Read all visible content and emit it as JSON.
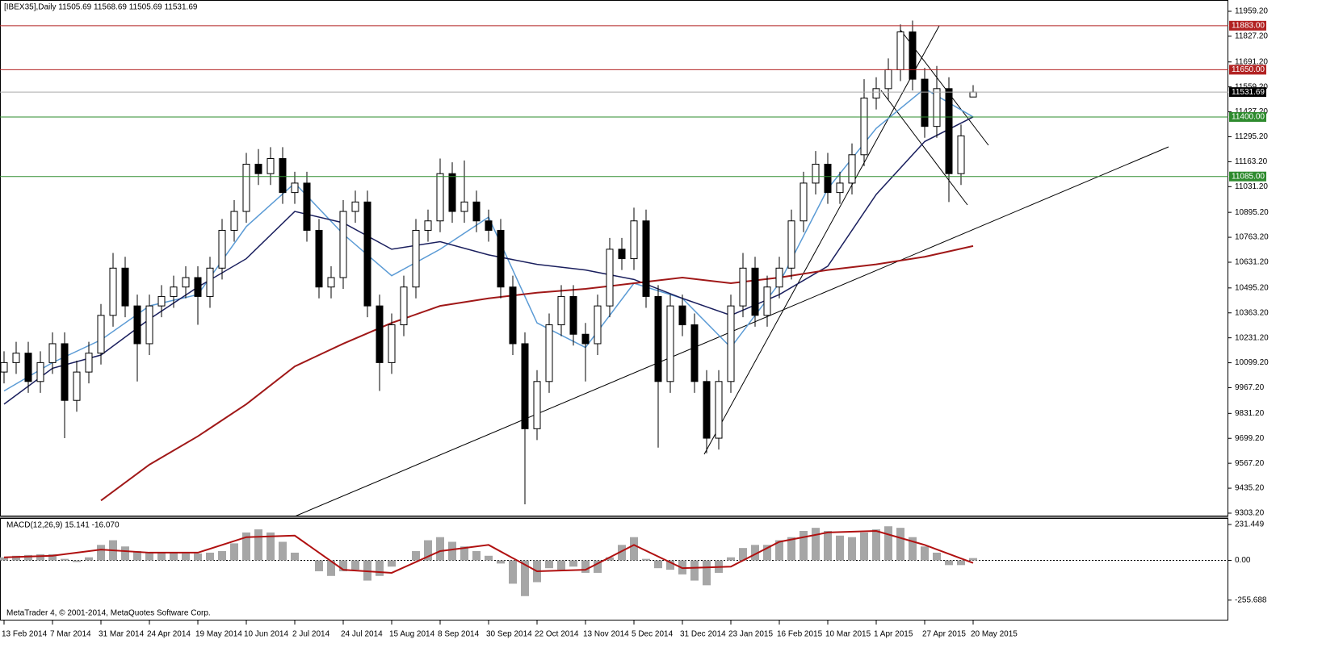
{
  "header": "[IBEX35],Daily  11505.69 11568.69 11505.69 11531.69",
  "footer": "MetaTrader 4, © 2001-2014, MetaQuotes Software Corp.",
  "chart_data": [
    {
      "type": "candlestick",
      "categories": [
        "13 Feb 2014",
        null,
        null,
        null,
        "7 Mar 2014",
        null,
        null,
        null,
        "31 Mar 2014",
        null,
        null,
        null,
        "24 Apr 2014",
        null,
        null,
        null,
        "19 May 2014",
        null,
        null,
        null,
        "10 Jun 2014",
        null,
        null,
        null,
        "2 Jul 2014",
        null,
        null,
        null,
        "24 Jul 2014",
        null,
        null,
        null,
        "15 Aug 2014",
        null,
        null,
        null,
        "8 Sep 2014",
        null,
        null,
        null,
        "30 Sep 2014",
        null,
        null,
        null,
        "22 Oct 2014",
        null,
        null,
        null,
        "13 Nov 2014",
        null,
        null,
        null,
        "5 Dec 2014",
        null,
        null,
        null,
        "31 Dec 2014",
        null,
        null,
        null,
        "23 Jan 2015",
        null,
        null,
        null,
        "16 Feb 2015",
        null,
        null,
        null,
        "10 Mar 2015",
        null,
        null,
        null,
        "1 Apr 2015",
        null,
        null,
        null,
        "27 Apr 2015",
        null,
        null,
        null,
        "20 May 2015"
      ],
      "open": [
        10050,
        10100,
        10150,
        10000,
        10100,
        10200,
        9900,
        10050,
        10150,
        10350,
        10600,
        10400,
        10200,
        10400,
        10450,
        10500,
        10550,
        10450,
        10600,
        10800,
        10900,
        11150,
        11100,
        11180,
        11000,
        11050,
        10800,
        10500,
        10550,
        10900,
        10950,
        10400,
        10100,
        10300,
        10500,
        10800,
        10850,
        11100,
        10900,
        10950,
        10850,
        10800,
        10500,
        10200,
        9750,
        10000,
        10300,
        10450,
        10250,
        10200,
        10400,
        10700,
        10650,
        10850,
        10450,
        10000,
        10400,
        10300,
        10000,
        9700,
        10000,
        10400,
        10600,
        10350,
        10500,
        10600,
        10850,
        11050,
        11150,
        11000,
        11050,
        11200,
        11500,
        11550,
        11650,
        11850,
        11600,
        11350,
        11550,
        11100,
        11505.69
      ],
      "high": [
        10160,
        10210,
        10210,
        10160,
        10260,
        10260,
        10110,
        10210,
        10410,
        10680,
        10660,
        10460,
        10460,
        10510,
        10560,
        10610,
        10610,
        10660,
        10860,
        10960,
        11210,
        11230,
        11240,
        11240,
        11110,
        11110,
        10860,
        10610,
        10960,
        11010,
        11010,
        10460,
        10360,
        10560,
        10860,
        10910,
        11180,
        11160,
        11170,
        11010,
        10910,
        10860,
        10560,
        10260,
        10060,
        10360,
        10510,
        10510,
        10310,
        10460,
        10760,
        10760,
        10920,
        10910,
        10510,
        10460,
        10460,
        10360,
        10060,
        10060,
        10460,
        10680,
        10660,
        10560,
        10660,
        10910,
        11110,
        11220,
        11210,
        11110,
        11260,
        11600,
        11610,
        11710,
        11890,
        11910,
        11660,
        11670,
        11610,
        11360,
        11568.69
      ],
      "low": [
        9990,
        10040,
        9940,
        9940,
        10040,
        9700,
        9840,
        9990,
        10090,
        10290,
        10340,
        10000,
        10140,
        10340,
        10390,
        10440,
        10300,
        10390,
        10540,
        10740,
        10840,
        11040,
        11040,
        10940,
        10940,
        10740,
        10440,
        10440,
        10490,
        10840,
        10340,
        9950,
        10040,
        10240,
        10440,
        10740,
        10790,
        10840,
        10840,
        10790,
        10740,
        10440,
        10140,
        9350,
        9690,
        9940,
        10240,
        10190,
        10000,
        10140,
        10340,
        10590,
        10590,
        10390,
        9650,
        9940,
        10240,
        9940,
        9620,
        9640,
        9940,
        10340,
        10290,
        10290,
        10440,
        10540,
        10790,
        10990,
        10940,
        10940,
        10990,
        11140,
        11440,
        11490,
        11590,
        11540,
        11290,
        11290,
        10950,
        11040,
        11505.69
      ],
      "close": [
        10100,
        10150,
        10000,
        10100,
        10200,
        9900,
        10050,
        10150,
        10350,
        10600,
        10400,
        10200,
        10400,
        10450,
        10500,
        10550,
        10450,
        10600,
        10800,
        10900,
        11150,
        11100,
        11180,
        11000,
        11050,
        10800,
        10500,
        10550,
        10900,
        10950,
        10400,
        10100,
        10300,
        10500,
        10800,
        10850,
        11100,
        10900,
        10950,
        10850,
        10800,
        10500,
        10200,
        9750,
        10000,
        10300,
        10450,
        10250,
        10200,
        10400,
        10700,
        10650,
        10850,
        10450,
        10000,
        10400,
        10300,
        10000,
        9700,
        10000,
        10400,
        10600,
        10350,
        10500,
        10600,
        10850,
        11050,
        11150,
        11000,
        11050,
        11200,
        11500,
        11550,
        11650,
        11850,
        11600,
        11350,
        11550,
        11100,
        11300,
        11531.69
      ],
      "up_color": "#ffffff",
      "down_color": "#000000",
      "lines": [
        {
          "color": "#5b9bd5",
          "values": [
            9950,
            10100,
            10220,
            10400,
            10460,
            10820,
            11050,
            10780,
            10560,
            10700,
            10870,
            10310,
            10180,
            10520,
            10440,
            10180,
            10520,
            11020,
            11340,
            11550,
            11400
          ]
        },
        {
          "color": "#1a1f5e",
          "values": [
            9880,
            10070,
            10140,
            10330,
            10500,
            10650,
            10900,
            10840,
            10700,
            10740,
            10670,
            10620,
            10590,
            10540,
            10440,
            10350,
            10460,
            10610,
            10990,
            11270,
            11400
          ]
        },
        {
          "color": "#a01818",
          "values": [
            null,
            null,
            9370,
            9560,
            9710,
            9880,
            10080,
            10200,
            10310,
            10400,
            10440,
            10470,
            10490,
            10520,
            10550,
            10520,
            10550,
            10590,
            10620,
            10660,
            10717
          ]
        }
      ],
      "levels": [
        {
          "value": 11883,
          "label": "11883.00",
          "color": "#b22222"
        },
        {
          "value": 11650,
          "label": "11650.00",
          "color": "#b22222"
        },
        {
          "value": 11531.69,
          "label": "11531.69",
          "color": "#000000"
        },
        {
          "value": 11400,
          "label": "11400.00",
          "color": "#2e8b2e"
        },
        {
          "value": 11085,
          "label": "11085.00",
          "color": "#2e8b2e"
        }
      ],
      "ylim": [
        9286,
        12019
      ],
      "yticks": [
        {
          "value": 11959.2,
          "label": "11959.20"
        },
        {
          "value": 11827.2,
          "label": "11827.20"
        },
        {
          "value": 11691.2,
          "label": "11691.20"
        },
        {
          "value": 11559.2,
          "label": "11559.20"
        },
        {
          "value": 11427.2,
          "label": "11427.20"
        },
        {
          "value": 11295.2,
          "label": "11295.20"
        },
        {
          "value": 11163.2,
          "label": "11163.20"
        },
        {
          "value": 11031.2,
          "label": "11031.20"
        },
        {
          "value": 10895.2,
          "label": "10895.20"
        },
        {
          "value": 10763.2,
          "label": "10763.20"
        },
        {
          "value": 10631.2,
          "label": "10631.20"
        },
        {
          "value": 10495.2,
          "label": "10495.20"
        },
        {
          "value": 10363.2,
          "label": "10363.20"
        },
        {
          "value": 10231.2,
          "label": "10231.20"
        },
        {
          "value": 10099.2,
          "label": "10099.20"
        },
        {
          "value": 9967.2,
          "label": "9967.20"
        },
        {
          "value": 9831.2,
          "label": "9831.20"
        },
        {
          "value": 9699.2,
          "label": "9699.20"
        },
        {
          "value": 9567.2,
          "label": "9567.20"
        },
        {
          "value": 9435.2,
          "label": "9435.20"
        },
        {
          "value": 9303.2,
          "label": "9303.20"
        }
      ],
      "grid": false
    },
    {
      "type": "macd",
      "title": "MACD(12,26,9) 15.141 -16.070",
      "values": [
        20,
        30,
        35,
        40,
        40,
        10,
        -10,
        20,
        100,
        130,
        90,
        60,
        50,
        50,
        50,
        45,
        45,
        50,
        60,
        110,
        180,
        200,
        180,
        120,
        50,
        0,
        -70,
        -100,
        -70,
        -60,
        -130,
        -100,
        -40,
        0,
        60,
        130,
        150,
        120,
        90,
        60,
        30,
        -20,
        -150,
        -230,
        -140,
        -50,
        -60,
        -40,
        -80,
        -80,
        20,
        100,
        150,
        10,
        -50,
        -60,
        -90,
        -130,
        -160,
        -80,
        20,
        80,
        100,
        100,
        130,
        150,
        190,
        210,
        190,
        160,
        150,
        180,
        200,
        220,
        210,
        150,
        90,
        50,
        -30,
        -30,
        15.141
      ],
      "color": "#a6a6a6",
      "signal": {
        "color": "#b01010",
        "values": [
          20,
          30,
          70,
          50,
          50,
          150,
          160,
          -60,
          -80,
          60,
          100,
          -70,
          -60,
          100,
          -50,
          -40,
          120,
          180,
          190,
          100,
          -16.07
        ]
      },
      "ylim": [
        -387,
        268
      ],
      "yticks": [
        {
          "value": 231.449,
          "label": "231.449"
        },
        {
          "value": 0,
          "label": "0.00"
        },
        {
          "value": -255.688,
          "label": "-255.688"
        }
      ]
    }
  ]
}
